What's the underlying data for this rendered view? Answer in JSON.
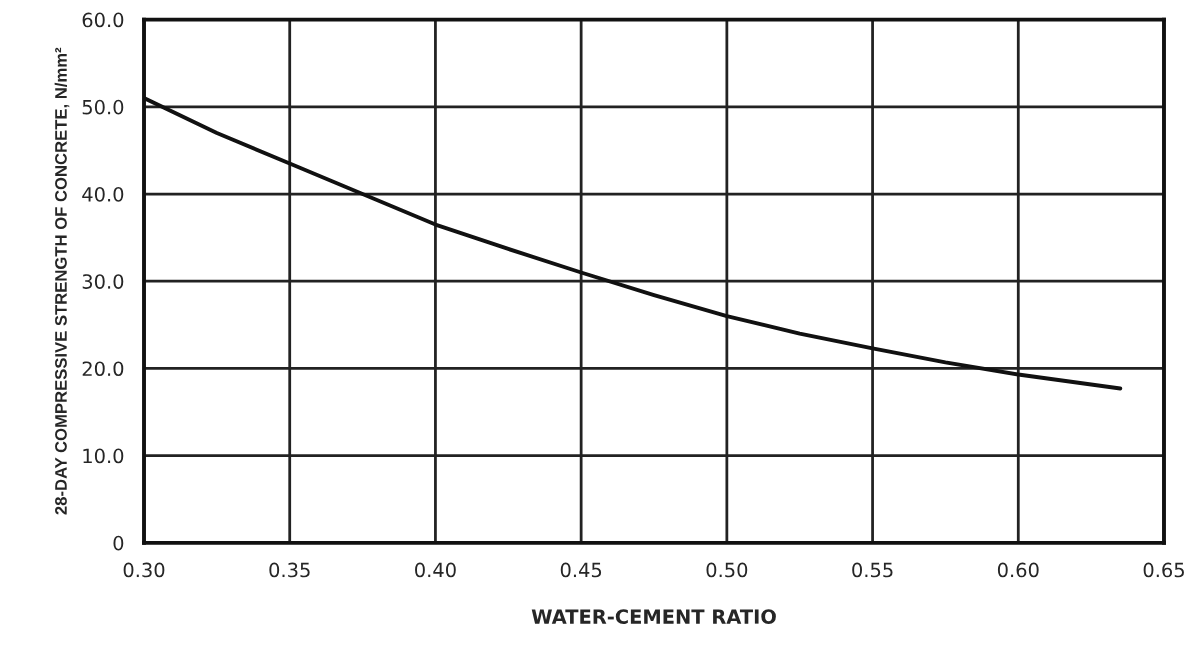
{
  "chart_data": {
    "type": "line",
    "xlabel": "WATER-CEMENT RATIO",
    "ylabel": "28-DAY COMPRESSIVE STRENGTH OF CONCRETE, N/mm²",
    "x": [
      0.3,
      0.325,
      0.35,
      0.375,
      0.4,
      0.425,
      0.45,
      0.475,
      0.5,
      0.525,
      0.55,
      0.575,
      0.6,
      0.635
    ],
    "series": [
      {
        "color": "#111111",
        "values": [
          51.0,
          47.0,
          43.5,
          40.0,
          36.5,
          33.7,
          31.0,
          28.4,
          26.0,
          24.0,
          22.3,
          20.7,
          19.3,
          17.7
        ]
      }
    ],
    "xlim": [
      0.3,
      0.65
    ],
    "ylim": [
      0,
      60
    ],
    "xticks": [
      {
        "value": 0.3,
        "label": "0.30"
      },
      {
        "value": 0.35,
        "label": "0.35"
      },
      {
        "value": 0.4,
        "label": "0.40"
      },
      {
        "value": 0.45,
        "label": "0.45"
      },
      {
        "value": 0.5,
        "label": "0.50"
      },
      {
        "value": 0.55,
        "label": "0.55"
      },
      {
        "value": 0.6,
        "label": "0.60"
      },
      {
        "value": 0.65,
        "label": "0.65"
      }
    ],
    "yticks": [
      0,
      {
        "value": 10,
        "label": "10.0"
      },
      {
        "value": 20,
        "label": "20.0"
      },
      {
        "value": 30,
        "label": "30.0"
      },
      {
        "value": 40,
        "label": "40.0"
      },
      {
        "value": 50,
        "label": "50.0"
      },
      {
        "value": 60,
        "label": "60.0"
      }
    ],
    "grid": true,
    "marker": "none",
    "line_style": "solid",
    "legend": false
  }
}
